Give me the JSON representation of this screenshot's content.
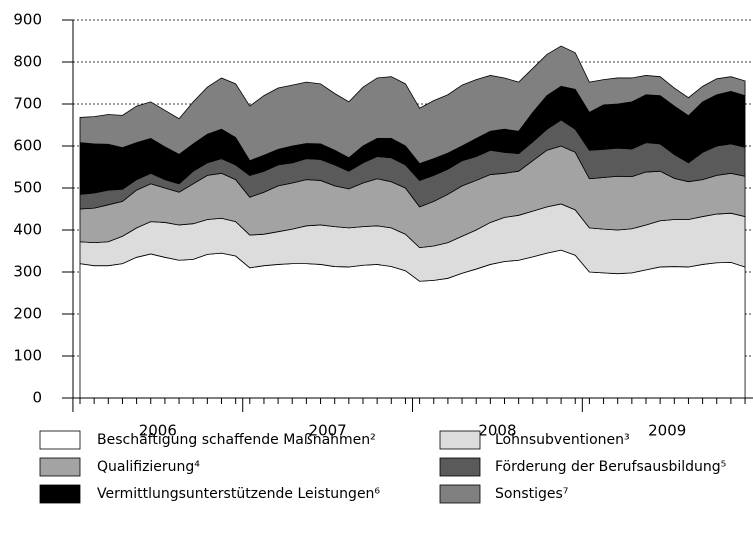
{
  "chart_data": {
    "type": "stacked_area",
    "categories": [
      null,
      null,
      null,
      null,
      null,
      null,
      null,
      null,
      null,
      null,
      null,
      null,
      null,
      null,
      null,
      null,
      null,
      null,
      null,
      null,
      null,
      null,
      null,
      null,
      null,
      null,
      null,
      null,
      null,
      null,
      null,
      null,
      null,
      null,
      null,
      null,
      null,
      null,
      null,
      null,
      null,
      null,
      null,
      null,
      null,
      null,
      null,
      null
    ],
    "x_groups": [
      "2006",
      "2007",
      "2008",
      "2009"
    ],
    "ylim": [
      0,
      900
    ],
    "yticks": [
      0,
      100,
      200,
      300,
      400,
      500,
      600,
      700,
      800,
      900
    ],
    "grid": true,
    "series": [
      {
        "name": "Beschäftigung schaffende Maßnahmen²",
        "color": "#ffffff",
        "values": [
          320,
          315,
          315,
          320,
          335,
          343,
          335,
          328,
          330,
          342,
          345,
          338,
          310,
          315,
          318,
          320,
          320,
          318,
          313,
          312,
          316,
          318,
          313,
          303,
          278,
          280,
          285,
          297,
          307,
          318,
          325,
          328,
          336,
          345,
          352,
          340,
          300,
          298,
          296,
          298,
          305,
          312,
          313,
          312,
          318,
          322,
          323,
          312
        ]
      },
      {
        "name": "Lohnsubventionen³",
        "color": "#dcdcdc",
        "values": [
          52,
          55,
          57,
          65,
          70,
          77,
          83,
          84,
          85,
          83,
          83,
          82,
          78,
          75,
          78,
          82,
          90,
          94,
          95,
          93,
          92,
          92,
          92,
          87,
          80,
          82,
          85,
          88,
          93,
          100,
          105,
          107,
          109,
          110,
          110,
          108,
          105,
          104,
          104,
          105,
          107,
          110,
          112,
          113,
          114,
          116,
          117,
          120
        ]
      },
      {
        "name": "Qualifizierung⁴",
        "color": "#a3a3a3",
        "values": [
          78,
          82,
          88,
          83,
          90,
          90,
          82,
          78,
          95,
          105,
          107,
          100,
          90,
          100,
          109,
          110,
          110,
          106,
          97,
          93,
          104,
          112,
          110,
          110,
          97,
          106,
          115,
          120,
          118,
          114,
          105,
          105,
          120,
          135,
          138,
          137,
          117,
          123,
          128,
          124,
          126,
          118,
          98,
          90,
          88,
          92,
          95,
          96
        ]
      },
      {
        "name": "Förderung der Berufsausbildung⁵",
        "color": "#5a5a5a",
        "values": [
          35,
          36,
          35,
          29,
          25,
          25,
          20,
          20,
          30,
          30,
          35,
          35,
          52,
          50,
          50,
          48,
          50,
          50,
          50,
          42,
          48,
          53,
          57,
          55,
          63,
          62,
          60,
          60,
          57,
          58,
          50,
          42,
          45,
          50,
          62,
          55,
          68,
          67,
          67,
          66,
          70,
          65,
          57,
          45,
          65,
          70,
          70,
          69
        ]
      },
      {
        "name": "Vermittlungsunterstützende Leistungen⁶",
        "color": "#000000",
        "values": [
          123,
          117,
          109,
          99,
          88,
          83,
          78,
          70,
          65,
          68,
          70,
          65,
          35,
          38,
          37,
          40,
          36,
          37,
          35,
          32,
          40,
          43,
          46,
          45,
          40,
          40,
          38,
          35,
          43,
          45,
          55,
          53,
          70,
          80,
          80,
          95,
          90,
          106,
          105,
          112,
          114,
          115,
          115,
          112,
          120,
          122,
          125,
          123
        ]
      },
      {
        "name": "Sonstiges⁷",
        "color": "#808080",
        "values": [
          60,
          65,
          71,
          77,
          87,
          87,
          87,
          85,
          100,
          112,
          122,
          128,
          130,
          142,
          146,
          145,
          146,
          143,
          135,
          133,
          140,
          144,
          147,
          148,
          132,
          138,
          139,
          145,
          140,
          133,
          122,
          117,
          105,
          98,
          96,
          87,
          72,
          60,
          62,
          57,
          46,
          45,
          43,
          43,
          37,
          38,
          35,
          35
        ]
      }
    ]
  }
}
